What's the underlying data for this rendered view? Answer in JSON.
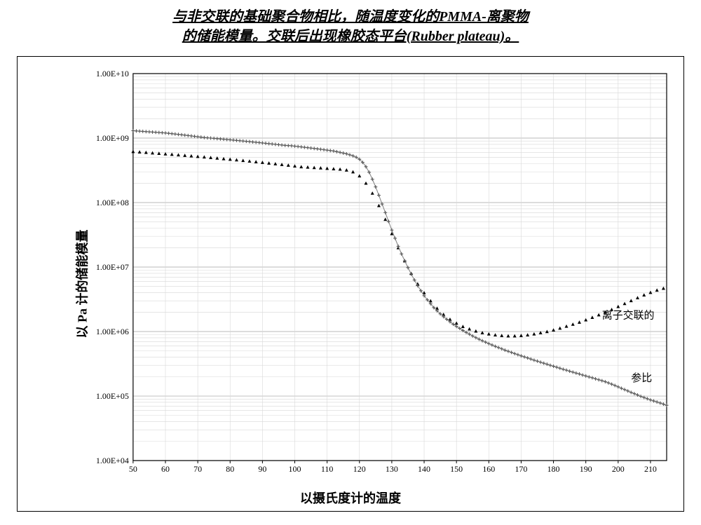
{
  "title_line1": "与非交联的基础聚合物相比，随温度变化的PMMA-离聚物",
  "title_line2": "的储能模量。交联后出现橡胶态平台(Rubber plateau)。",
  "ylabel": "以 Pa 计的储能模量",
  "xlabel": "以摄氏度计的温度",
  "chart": {
    "type": "scatter-line-logy",
    "background_color": "#ffffff",
    "border_color": "#000000",
    "grid_major_color": "#b8b8b8",
    "grid_minor_color": "#d8d8d8",
    "axis_color": "#000000",
    "x_axis": {
      "min": 50,
      "max": 215,
      "tick_step": 10,
      "scale": "linear",
      "tick_fontsize": 12
    },
    "y_axis": {
      "min_exp": 4,
      "max_exp": 10,
      "scale": "log10",
      "tick_labels": [
        "1.00E+04",
        "1.00E+05",
        "1.00E+06",
        "1.00E+07",
        "1.00E+08",
        "1.00E+09",
        "1.00E+10"
      ],
      "tick_fontsize": 12
    },
    "series": [
      {
        "name": "离子交联的",
        "marker": "triangle",
        "marker_size": 5,
        "marker_color": "#000000",
        "line_color": "#000000",
        "line_width": 0,
        "annotation_xy": [
          195,
          1600000.0
        ],
        "data": [
          [
            50,
            620000000.0
          ],
          [
            52,
            610000000.0
          ],
          [
            54,
            600000000.0
          ],
          [
            56,
            590000000.0
          ],
          [
            58,
            580000000.0
          ],
          [
            60,
            570000000.0
          ],
          [
            62,
            560000000.0
          ],
          [
            64,
            550000000.0
          ],
          [
            66,
            540000000.0
          ],
          [
            68,
            530000000.0
          ],
          [
            70,
            520000000.0
          ],
          [
            72,
            510000000.0
          ],
          [
            74,
            500000000.0
          ],
          [
            76,
            490000000.0
          ],
          [
            78,
            480000000.0
          ],
          [
            80,
            470000000.0
          ],
          [
            82,
            460000000.0
          ],
          [
            84,
            450000000.0
          ],
          [
            86,
            440000000.0
          ],
          [
            88,
            430000000.0
          ],
          [
            90,
            420000000.0
          ],
          [
            92,
            410000000.0
          ],
          [
            94,
            400000000.0
          ],
          [
            96,
            390000000.0
          ],
          [
            98,
            380000000.0
          ],
          [
            100,
            370000000.0
          ],
          [
            102,
            360000000.0
          ],
          [
            104,
            355000000.0
          ],
          [
            106,
            350000000.0
          ],
          [
            108,
            345000000.0
          ],
          [
            110,
            340000000.0
          ],
          [
            112,
            335000000.0
          ],
          [
            114,
            330000000.0
          ],
          [
            116,
            320000000.0
          ],
          [
            118,
            300000000.0
          ],
          [
            120,
            260000000.0
          ],
          [
            122,
            200000000.0
          ],
          [
            124,
            140000000.0
          ],
          [
            126,
            90000000.0
          ],
          [
            128,
            55000000.0
          ],
          [
            130,
            33000000.0
          ],
          [
            132,
            20000000.0
          ],
          [
            134,
            12500000.0
          ],
          [
            136,
            8000000.0
          ],
          [
            138,
            5500000.0
          ],
          [
            140,
            4000000.0
          ],
          [
            142,
            3000000.0
          ],
          [
            144,
            2300000.0
          ],
          [
            146,
            1850000.0
          ],
          [
            148,
            1550000.0
          ],
          [
            150,
            1350000.0
          ],
          [
            152,
            1200000.0
          ],
          [
            154,
            1100000.0
          ],
          [
            156,
            1020000.0
          ],
          [
            158,
            960000.0
          ],
          [
            160,
            920000.0
          ],
          [
            162,
            890000.0
          ],
          [
            164,
            870000.0
          ],
          [
            166,
            860000.0
          ],
          [
            168,
            860000.0
          ],
          [
            170,
            870000.0
          ],
          [
            172,
            890000.0
          ],
          [
            174,
            920000.0
          ],
          [
            176,
            960000.0
          ],
          [
            178,
            1000000.0
          ],
          [
            180,
            1060000.0
          ],
          [
            182,
            1130000.0
          ],
          [
            184,
            1210000.0
          ],
          [
            186,
            1300000.0
          ],
          [
            188,
            1400000.0
          ],
          [
            190,
            1520000.0
          ],
          [
            192,
            1660000.0
          ],
          [
            194,
            1820000.0
          ],
          [
            196,
            2000000.0
          ],
          [
            198,
            2200000.0
          ],
          [
            200,
            2450000.0
          ],
          [
            202,
            2720000.0
          ],
          [
            204,
            3020000.0
          ],
          [
            206,
            3350000.0
          ],
          [
            208,
            3700000.0
          ],
          [
            210,
            4050000.0
          ],
          [
            212,
            4400000.0
          ],
          [
            214,
            4700000.0
          ]
        ]
      },
      {
        "name": "参比",
        "marker": "plus",
        "marker_size": 5,
        "marker_color": "#555555",
        "line_color": "#888888",
        "line_width": 1.1,
        "annotation_xy": [
          204,
          170000.0
        ],
        "data": [
          [
            50,
            1300000000.0
          ],
          [
            51,
            1290000000.0
          ],
          [
            52,
            1280000000.0
          ],
          [
            53,
            1270000000.0
          ],
          [
            54,
            1260000000.0
          ],
          [
            55,
            1250000000.0
          ],
          [
            56,
            1240000000.0
          ],
          [
            57,
            1230000000.0
          ],
          [
            58,
            1220000000.0
          ],
          [
            59,
            1210000000.0
          ],
          [
            60,
            1200000000.0
          ],
          [
            61,
            1185000000.0
          ],
          [
            62,
            1170000000.0
          ],
          [
            63,
            1155000000.0
          ],
          [
            64,
            1140000000.0
          ],
          [
            65,
            1125000000.0
          ],
          [
            66,
            1110000000.0
          ],
          [
            67,
            1095000000.0
          ],
          [
            68,
            1080000000.0
          ],
          [
            69,
            1065000000.0
          ],
          [
            70,
            1050000000.0
          ],
          [
            71,
            1035000000.0
          ],
          [
            72,
            1020000000.0
          ],
          [
            73,
            1010000000.0
          ],
          [
            74,
            1000000000.0
          ],
          [
            75,
            990000000.0
          ],
          [
            76,
            980000000.0
          ],
          [
            77,
            970000000.0
          ],
          [
            78,
            960000000.0
          ],
          [
            79,
            950000000.0
          ],
          [
            80,
            940000000.0
          ],
          [
            81,
            930000000.0
          ],
          [
            82,
            920000000.0
          ],
          [
            83,
            910000000.0
          ],
          [
            84,
            900000000.0
          ],
          [
            85,
            890000000.0
          ],
          [
            86,
            880000000.0
          ],
          [
            87,
            870000000.0
          ],
          [
            88,
            860000000.0
          ],
          [
            89,
            850000000.0
          ],
          [
            90,
            840000000.0
          ],
          [
            91,
            830000000.0
          ],
          [
            92,
            820000000.0
          ],
          [
            93,
            810000000.0
          ],
          [
            94,
            800000000.0
          ],
          [
            95,
            790000000.0
          ],
          [
            96,
            780000000.0
          ],
          [
            97,
            770000000.0
          ],
          [
            98,
            765000000.0
          ],
          [
            99,
            760000000.0
          ],
          [
            100,
            750000000.0
          ],
          [
            101,
            740000000.0
          ],
          [
            102,
            730000000.0
          ],
          [
            103,
            720000000.0
          ],
          [
            104,
            710000000.0
          ],
          [
            105,
            700000000.0
          ],
          [
            106,
            690000000.0
          ],
          [
            107,
            680000000.0
          ],
          [
            108,
            670000000.0
          ],
          [
            109,
            660000000.0
          ],
          [
            110,
            650000000.0
          ],
          [
            111,
            640000000.0
          ],
          [
            112,
            630000000.0
          ],
          [
            113,
            615000000.0
          ],
          [
            114,
            600000000.0
          ],
          [
            115,
            585000000.0
          ],
          [
            116,
            570000000.0
          ],
          [
            117,
            550000000.0
          ],
          [
            118,
            530000000.0
          ],
          [
            119,
            505000000.0
          ],
          [
            120,
            470000000.0
          ],
          [
            121,
            420000000.0
          ],
          [
            122,
            360000000.0
          ],
          [
            123,
            295000000.0
          ],
          [
            124,
            230000000.0
          ],
          [
            125,
            175000000.0
          ],
          [
            126,
            130000000.0
          ],
          [
            127,
            95000000.0
          ],
          [
            128,
            70000000.0
          ],
          [
            129,
            51000000.0
          ],
          [
            130,
            37500000.0
          ],
          [
            131,
            28000000.0
          ],
          [
            132,
            21000000.0
          ],
          [
            133,
            16000000.0
          ],
          [
            134,
            12500000.0
          ],
          [
            135,
            9800000.0
          ],
          [
            136,
            7800000.0
          ],
          [
            137,
            6300000.0
          ],
          [
            138,
            5150000.0
          ],
          [
            139,
            4300000.0
          ],
          [
            140,
            3600000.0
          ],
          [
            141,
            3100000.0
          ],
          [
            142,
            2700000.0
          ],
          [
            143,
            2350000.0
          ],
          [
            144,
            2100000.0
          ],
          [
            145,
            1880000.0
          ],
          [
            146,
            1700000.0
          ],
          [
            147,
            1550000.0
          ],
          [
            148,
            1420000.0
          ],
          [
            149,
            1300000.0
          ],
          [
            150,
            1200000.0
          ],
          [
            151,
            1120000.0
          ],
          [
            152,
            1040000.0
          ],
          [
            153,
            970000.0
          ],
          [
            154,
            910000.0
          ],
          [
            155,
            855000.0
          ],
          [
            156,
            805000.0
          ],
          [
            157,
            760000.0
          ],
          [
            158,
            720000.0
          ],
          [
            159,
            685000.0
          ],
          [
            160,
            650000.0
          ],
          [
            161,
            620000.0
          ],
          [
            162,
            590000.0
          ],
          [
            163,
            565000.0
          ],
          [
            164,
            540000.0
          ],
          [
            165,
            515000.0
          ],
          [
            166,
            495000.0
          ],
          [
            167,
            475000.0
          ],
          [
            168,
            455000.0
          ],
          [
            169,
            438000.0
          ],
          [
            170,
            420000.0
          ],
          [
            171,
            405000.0
          ],
          [
            172,
            390000.0
          ],
          [
            173,
            375000.0
          ],
          [
            174,
            360000.0
          ],
          [
            175,
            348000.0
          ],
          [
            176,
            335000.0
          ],
          [
            177,
            323000.0
          ],
          [
            178,
            312000.0
          ],
          [
            179,
            300000.0
          ],
          [
            180,
            290000.0
          ],
          [
            181,
            280000.0
          ],
          [
            182,
            270000.0
          ],
          [
            183,
            260000.0
          ],
          [
            184,
            252000.0
          ],
          [
            185,
            243000.0
          ],
          [
            186,
            235000.0
          ],
          [
            187,
            227000.0
          ],
          [
            188,
            220000.0
          ],
          [
            189,
            212000.0
          ],
          [
            190,
            205000.0
          ],
          [
            191,
            198000.0
          ],
          [
            192,
            192000.0
          ],
          [
            193,
            185000.0
          ],
          [
            194,
            179000.0
          ],
          [
            195,
            173000.0
          ],
          [
            196,
            167000.0
          ],
          [
            197,
            160000.0
          ],
          [
            198,
            153000.0
          ],
          [
            199,
            146000.0
          ],
          [
            200,
            139000.0
          ],
          [
            201,
            132000.0
          ],
          [
            202,
            126000.0
          ],
          [
            203,
            120000.0
          ],
          [
            204,
            114000.0
          ],
          [
            205,
            109000.0
          ],
          [
            206,
            104000.0
          ],
          [
            207,
            99000.0
          ],
          [
            208,
            95000.0
          ],
          [
            209,
            91000.0
          ],
          [
            210,
            87000.0
          ],
          [
            211,
            84000.0
          ],
          [
            212,
            81000.0
          ],
          [
            213,
            78000.0
          ],
          [
            214,
            75000.0
          ],
          [
            215,
            72000.0
          ]
        ]
      }
    ]
  }
}
